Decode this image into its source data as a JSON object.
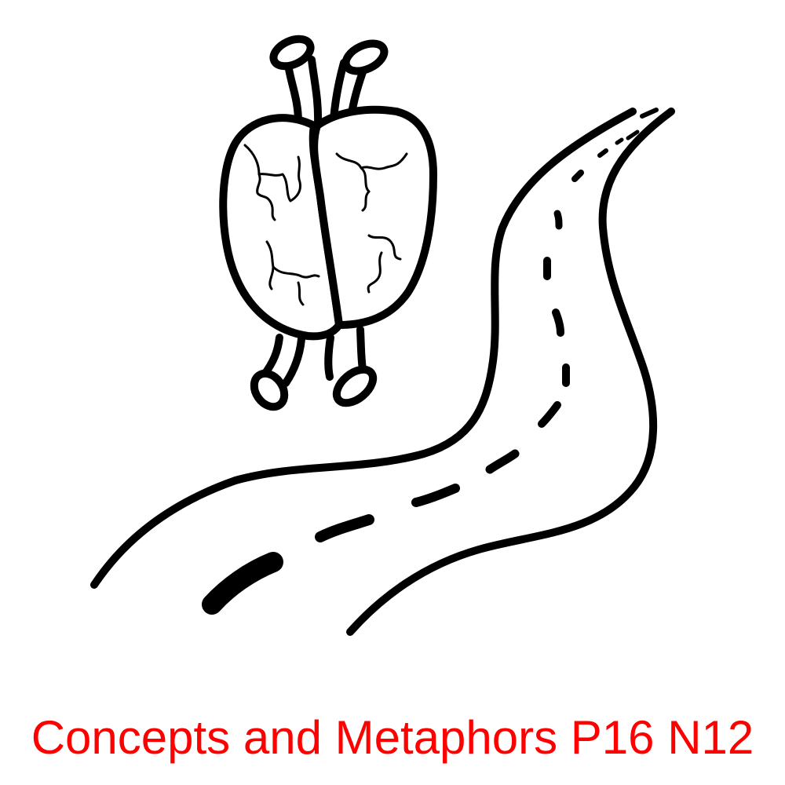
{
  "caption": {
    "text": "Concepts and Metaphors P16 N12",
    "color": "#ff0000"
  },
  "illustration": {
    "subjects": [
      "heart-icon",
      "road-icon"
    ],
    "stroke_color": "#000000",
    "background_color": "#ffffff"
  }
}
